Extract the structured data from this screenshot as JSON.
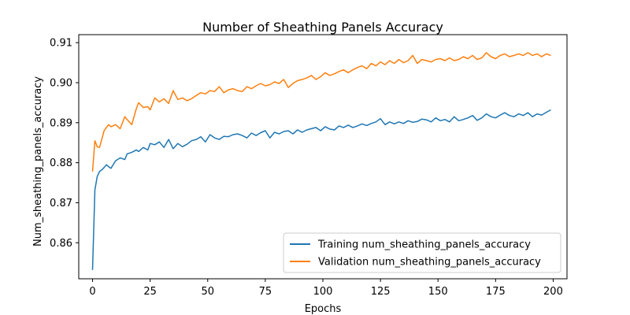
{
  "chart_data": {
    "type": "line",
    "title": "Number of Sheathing Panels Accuracy",
    "xlabel": "Epochs",
    "ylabel": "Num_sheathing_panels_accuracy",
    "xlim": [
      -6,
      206
    ],
    "ylim": [
      0.851,
      0.912
    ],
    "xticks": [
      0,
      25,
      50,
      75,
      100,
      125,
      150,
      175,
      200
    ],
    "yticks": [
      0.86,
      0.87,
      0.88,
      0.89,
      0.9,
      0.91
    ],
    "ytick_labels": [
      "0.86",
      "0.87",
      "0.88",
      "0.89",
      "0.90",
      "0.91"
    ],
    "grid": false,
    "legend_position": "lower-right",
    "series": [
      {
        "name": "Training num_sheathing_panels_accuracy",
        "color": "#1f77b4",
        "x": [
          0,
          1,
          2,
          3,
          4,
          5,
          6,
          7,
          8,
          10,
          12,
          14,
          15,
          17,
          19,
          20,
          22,
          24,
          25,
          27,
          29,
          31,
          33,
          35,
          37,
          39,
          41,
          43,
          45,
          47,
          49,
          51,
          53,
          55,
          57,
          59,
          61,
          63,
          65,
          67,
          69,
          71,
          73,
          75,
          77,
          79,
          81,
          83,
          85,
          87,
          89,
          91,
          93,
          95,
          97,
          99,
          101,
          103,
          105,
          107,
          109,
          111,
          113,
          115,
          117,
          119,
          121,
          123,
          125,
          127,
          129,
          131,
          133,
          135,
          137,
          139,
          141,
          143,
          145,
          147,
          149,
          151,
          153,
          155,
          157,
          159,
          161,
          163,
          165,
          167,
          169,
          171,
          173,
          175,
          177,
          179,
          181,
          183,
          185,
          187,
          189,
          191,
          193,
          195,
          197,
          199
        ],
        "y": [
          0.8532,
          0.8732,
          0.8765,
          0.8778,
          0.8782,
          0.8788,
          0.8795,
          0.879,
          0.8786,
          0.8805,
          0.8812,
          0.8808,
          0.8822,
          0.8826,
          0.8832,
          0.8828,
          0.8838,
          0.8832,
          0.8848,
          0.8845,
          0.8852,
          0.8838,
          0.8858,
          0.8835,
          0.8848,
          0.884,
          0.8846,
          0.8855,
          0.8858,
          0.8865,
          0.8852,
          0.887,
          0.8862,
          0.8858,
          0.8866,
          0.8865,
          0.887,
          0.8872,
          0.8868,
          0.8862,
          0.8874,
          0.8868,
          0.8875,
          0.888,
          0.8862,
          0.8876,
          0.8872,
          0.8878,
          0.888,
          0.8872,
          0.8882,
          0.8876,
          0.8882,
          0.8885,
          0.8888,
          0.888,
          0.889,
          0.8884,
          0.8882,
          0.8892,
          0.8888,
          0.8894,
          0.8888,
          0.8892,
          0.8897,
          0.8893,
          0.8898,
          0.8902,
          0.891,
          0.8895,
          0.8902,
          0.8897,
          0.8902,
          0.8898,
          0.8905,
          0.8901,
          0.8903,
          0.8909,
          0.8907,
          0.8902,
          0.8912,
          0.8905,
          0.8908,
          0.8902,
          0.8915,
          0.8905,
          0.8908,
          0.8912,
          0.8918,
          0.8906,
          0.8912,
          0.8922,
          0.8915,
          0.8912,
          0.8919,
          0.8925,
          0.8918,
          0.8915,
          0.8922,
          0.8918,
          0.8925,
          0.8915,
          0.8922,
          0.8919,
          0.8926,
          0.8932
        ]
      },
      {
        "name": "Validation num_sheathing_panels_accuracy",
        "color": "#ff7f0e",
        "x": [
          0,
          1,
          2,
          3,
          4,
          5,
          6,
          7,
          8,
          10,
          12,
          14,
          15,
          17,
          19,
          20,
          22,
          24,
          25,
          27,
          29,
          31,
          33,
          35,
          37,
          39,
          41,
          43,
          45,
          47,
          49,
          51,
          53,
          55,
          57,
          59,
          61,
          63,
          65,
          67,
          69,
          71,
          73,
          75,
          77,
          79,
          81,
          83,
          85,
          87,
          89,
          91,
          93,
          95,
          97,
          99,
          101,
          103,
          105,
          107,
          109,
          111,
          113,
          115,
          117,
          119,
          121,
          123,
          125,
          127,
          129,
          131,
          133,
          135,
          137,
          139,
          141,
          143,
          145,
          147,
          149,
          151,
          153,
          155,
          157,
          159,
          161,
          163,
          165,
          167,
          169,
          171,
          173,
          175,
          177,
          179,
          181,
          183,
          185,
          187,
          189,
          191,
          193,
          195,
          197,
          199
        ],
        "y": [
          0.8778,
          0.8855,
          0.884,
          0.8838,
          0.8858,
          0.888,
          0.8888,
          0.8895,
          0.889,
          0.8895,
          0.8885,
          0.8915,
          0.8908,
          0.8895,
          0.8935,
          0.895,
          0.8938,
          0.894,
          0.8932,
          0.8962,
          0.8952,
          0.896,
          0.8948,
          0.898,
          0.8958,
          0.8962,
          0.8955,
          0.896,
          0.8968,
          0.8975,
          0.8972,
          0.898,
          0.8978,
          0.899,
          0.8975,
          0.8982,
          0.8985,
          0.898,
          0.8978,
          0.899,
          0.8985,
          0.8992,
          0.8998,
          0.8992,
          0.8995,
          0.9002,
          0.8998,
          0.9008,
          0.8988,
          0.8998,
          0.9005,
          0.9008,
          0.9012,
          0.9018,
          0.9008,
          0.9015,
          0.9025,
          0.9018,
          0.9022,
          0.9028,
          0.9032,
          0.9025,
          0.9032,
          0.9038,
          0.9042,
          0.9035,
          0.9048,
          0.9042,
          0.9052,
          0.9045,
          0.9055,
          0.9048,
          0.9058,
          0.905,
          0.9055,
          0.9068,
          0.9048,
          0.9058,
          0.9055,
          0.9052,
          0.9058,
          0.906,
          0.9055,
          0.9062,
          0.9055,
          0.9058,
          0.9065,
          0.906,
          0.9068,
          0.9058,
          0.9062,
          0.9075,
          0.9065,
          0.906,
          0.9068,
          0.9072,
          0.9065,
          0.9068,
          0.9072,
          0.9068,
          0.9075,
          0.9068,
          0.9072,
          0.9065,
          0.9072,
          0.9068
        ]
      }
    ]
  }
}
